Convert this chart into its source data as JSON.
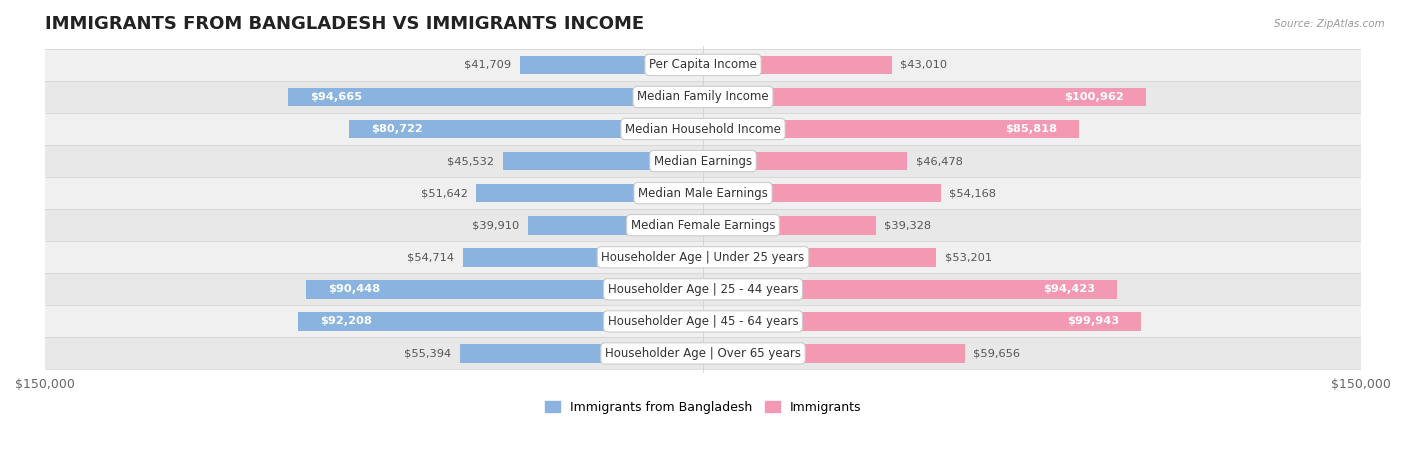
{
  "title": "IMMIGRANTS FROM BANGLADESH VS IMMIGRANTS INCOME",
  "source": "Source: ZipAtlas.com",
  "categories": [
    "Per Capita Income",
    "Median Family Income",
    "Median Household Income",
    "Median Earnings",
    "Median Male Earnings",
    "Median Female Earnings",
    "Householder Age | Under 25 years",
    "Householder Age | 25 - 44 years",
    "Householder Age | 45 - 64 years",
    "Householder Age | Over 65 years"
  ],
  "bangladesh_values": [
    41709,
    94665,
    80722,
    45532,
    51642,
    39910,
    54714,
    90448,
    92208,
    55394
  ],
  "immigrants_values": [
    43010,
    100962,
    85818,
    46478,
    54168,
    39328,
    53201,
    94423,
    99943,
    59656
  ],
  "bangladesh_color": "#8ab4df",
  "immigrants_color": "#f499b4",
  "bangladesh_label": "Immigrants from Bangladesh",
  "immigrants_label": "Immigrants",
  "xlim": 150000,
  "bar_height": 0.58,
  "title_fontsize": 13,
  "label_fontsize": 8.5,
  "value_fontsize": 8.2,
  "axis_label_fontsize": 9,
  "inside_threshold": 65000,
  "row_colors": [
    "#f0f0f0",
    "#e8e8e8"
  ],
  "white_text_color": "#ffffff",
  "dark_text_color": "#555555"
}
